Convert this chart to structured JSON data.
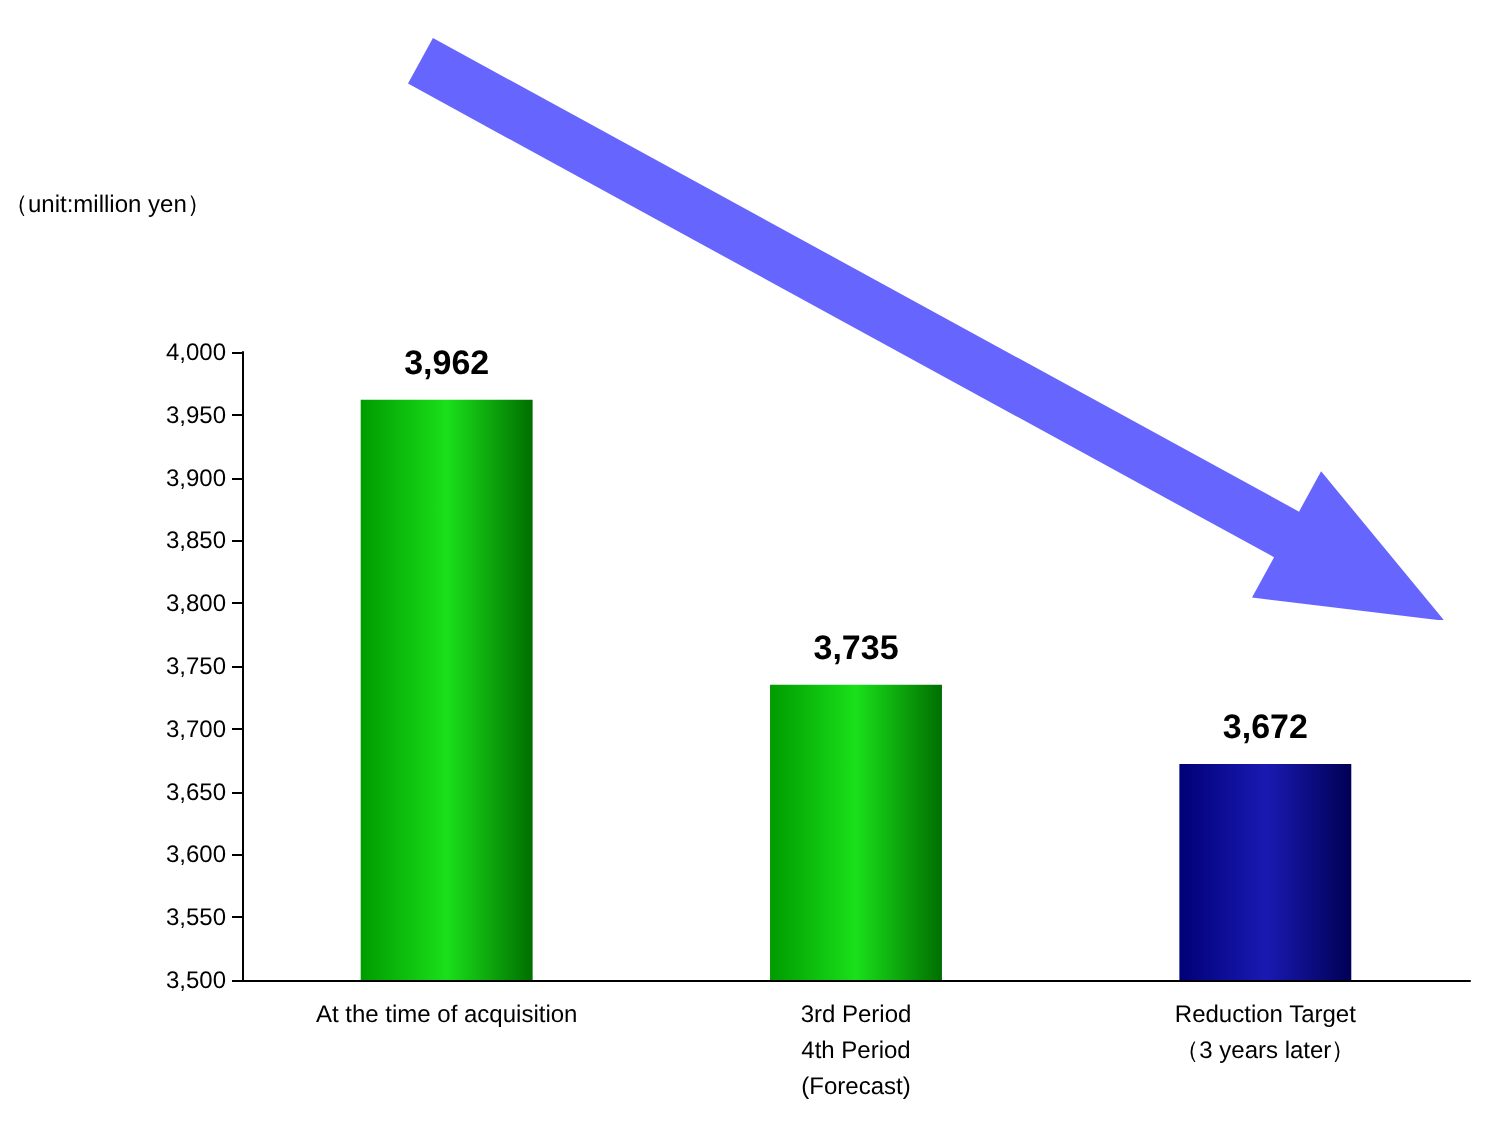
{
  "chart_data": {
    "type": "bar",
    "ylabel": "（unit:million yen）",
    "categories": [
      "At the time of acquisition",
      "3rd Period\n4th Period\n(Forecast)",
      "Reduction Target\n（3 years later）"
    ],
    "values": [
      3962,
      3735,
      3672
    ],
    "value_labels": [
      "3,962",
      "3,735",
      "3,672"
    ],
    "colors": [
      "#00dd00",
      "#00dd00",
      "#0000aa"
    ],
    "ylim": [
      3500,
      4000
    ],
    "yticks": [
      {
        "value": 3500,
        "label": "3,500"
      },
      {
        "value": 3550,
        "label": "3,550"
      },
      {
        "value": 3600,
        "label": "3,600"
      },
      {
        "value": 3650,
        "label": "3,650"
      },
      {
        "value": 3700,
        "label": "3,700"
      },
      {
        "value": 3750,
        "label": "3,750"
      },
      {
        "value": 3800,
        "label": "3,800"
      },
      {
        "value": 3850,
        "label": "3,850"
      },
      {
        "value": 3900,
        "label": "3,900"
      },
      {
        "value": 3950,
        "label": "3,950"
      },
      {
        "value": 4000,
        "label": "4,000"
      }
    ]
  }
}
